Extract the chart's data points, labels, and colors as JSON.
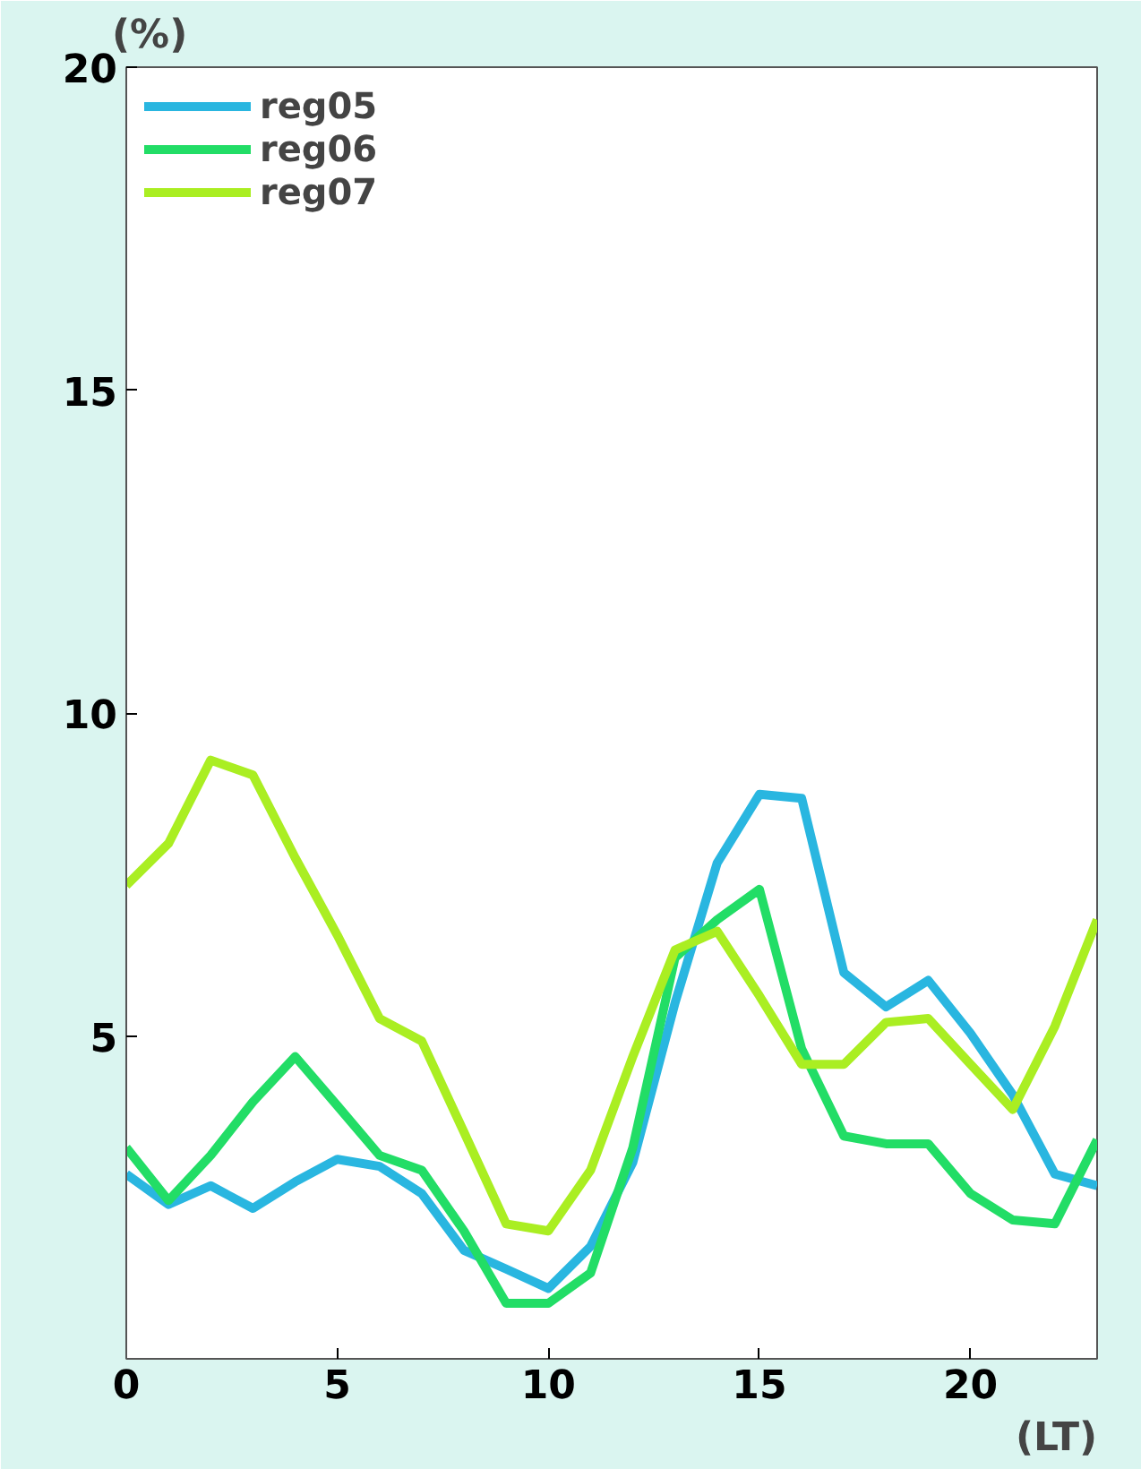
{
  "chart_data": {
    "type": "line",
    "xlabel": "(LT)",
    "ylabel": "(%)",
    "x": [
      0,
      1,
      2,
      3,
      4,
      5,
      6,
      7,
      8,
      9,
      10,
      11,
      12,
      13,
      14,
      15,
      16,
      17,
      18,
      19,
      20,
      21,
      22,
      23
    ],
    "xlim": [
      0,
      23
    ],
    "xticks": [
      0,
      5,
      10,
      15,
      20
    ],
    "ylim": [
      0,
      20
    ],
    "yticks": [
      5,
      10,
      15,
      20
    ],
    "grid": false,
    "legend": "top left",
    "line_style": "solid",
    "marker": "none",
    "series": [
      {
        "name": "reg05",
        "color": "#29b6e0",
        "values": [
          2.86,
          2.39,
          2.68,
          2.33,
          2.74,
          3.09,
          2.98,
          2.56,
          1.68,
          1.39,
          1.09,
          1.74,
          3.04,
          5.51,
          7.68,
          8.74,
          8.68,
          5.98,
          5.45,
          5.86,
          5.04,
          4.09,
          2.86,
          2.68
        ]
      },
      {
        "name": "reg06",
        "color": "#22dd66",
        "values": [
          3.27,
          2.45,
          3.15,
          3.98,
          4.68,
          3.92,
          3.15,
          2.92,
          1.98,
          0.86,
          0.86,
          1.33,
          3.27,
          6.21,
          6.8,
          7.27,
          4.8,
          3.45,
          3.33,
          3.33,
          2.56,
          2.15,
          2.09,
          3.39
        ]
      },
      {
        "name": "reg07",
        "color": "#aaee22",
        "values": [
          7.33,
          7.98,
          9.27,
          9.04,
          7.76,
          6.56,
          5.27,
          4.92,
          3.51,
          2.09,
          1.98,
          2.92,
          4.68,
          6.33,
          6.62,
          5.62,
          4.56,
          4.56,
          5.21,
          5.27,
          4.56,
          3.86,
          5.15,
          6.8
        ]
      }
    ]
  }
}
